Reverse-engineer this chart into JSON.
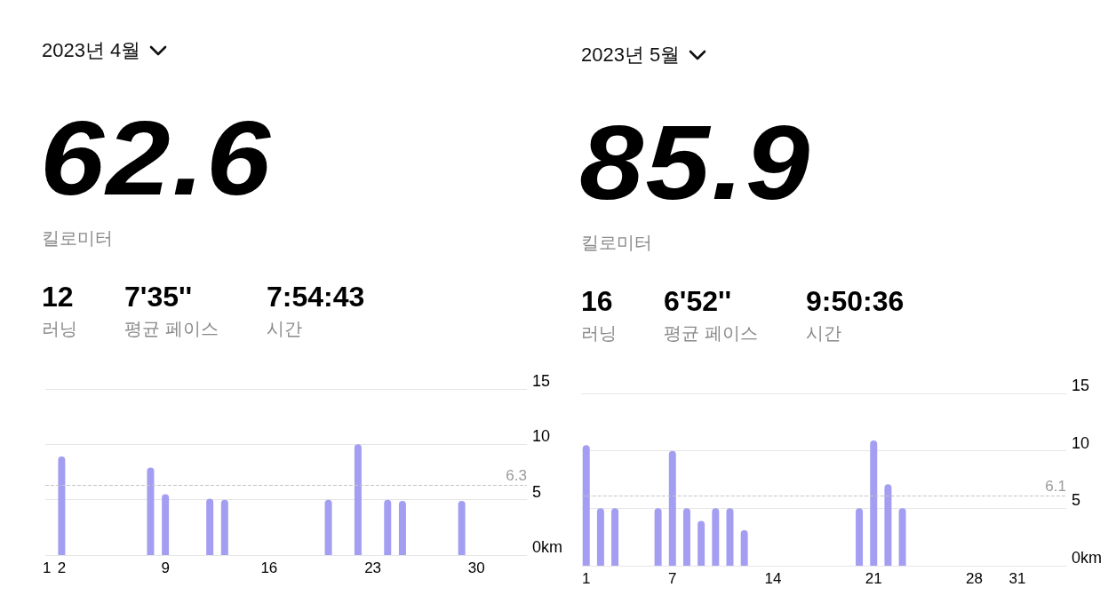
{
  "chart_data": [
    {
      "type": "bar",
      "title": "2023년 4월",
      "annotations": [
        "62.6",
        "킬로미터",
        "12",
        "러닝",
        "7'35''",
        "평균 페이스",
        "7:54:43",
        "시간"
      ],
      "x": [
        2,
        8,
        9,
        12,
        13,
        20,
        22,
        24,
        25,
        29
      ],
      "values": [
        8.9,
        7.9,
        5.5,
        5.1,
        5.0,
        5.0,
        10.0,
        5.0,
        4.9,
        4.9
      ],
      "color": "#a49ef2",
      "xlim": [
        0.9,
        33.4
      ],
      "xticks": [
        1,
        2,
        9,
        16,
        23,
        30
      ],
      "ylim": [
        0,
        15
      ],
      "yticks": [
        {
          "value": 0,
          "label": "0km"
        },
        5,
        10,
        15
      ],
      "grid": "y",
      "ref_lines": [
        {
          "axis": "y",
          "value": 6.3,
          "label": "6.3",
          "color": "#c4c4c4",
          "line_style": "dashed"
        }
      ]
    },
    {
      "type": "bar",
      "title": "2023년 5월",
      "annotations": [
        "85.9",
        "킬로미터",
        "16",
        "러닝",
        "6'52''",
        "평균 페이스",
        "9:50:36",
        "시간"
      ],
      "x": [
        1,
        2,
        3,
        6,
        7,
        8,
        9,
        10,
        11,
        12,
        20,
        21,
        22,
        23
      ],
      "values": [
        10.5,
        5.0,
        5.0,
        5.0,
        10.0,
        5.0,
        3.9,
        5.0,
        5.0,
        3.1,
        5.0,
        10.9,
        7.1,
        5.0
      ],
      "color": "#a49ef2",
      "xlim": [
        0.7,
        34.4
      ],
      "xticks": [
        1,
        7,
        14,
        21,
        28,
        31
      ],
      "ylim": [
        0,
        15
      ],
      "yticks": [
        {
          "value": 0,
          "label": "0km"
        },
        5,
        10,
        15
      ],
      "grid": "y",
      "ref_lines": [
        {
          "axis": "y",
          "value": 6.1,
          "label": "6.1",
          "color": "#c4c4c4",
          "line_style": "dashed"
        }
      ]
    }
  ]
}
